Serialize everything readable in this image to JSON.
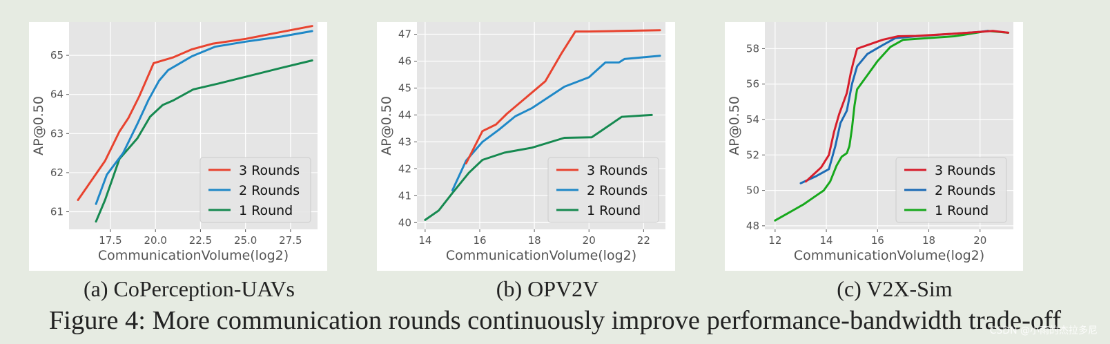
{
  "chart_data": [
    {
      "type": "line",
      "caption": "(a) CoPerception-UAVs",
      "xlabel": "CommunicationVolume(log2)",
      "ylabel": "AP@0.50",
      "xlim": [
        15.2,
        29.0
      ],
      "ylim": [
        60.55,
        65.85
      ],
      "xticks": [
        17.5,
        20.0,
        22.5,
        25.0,
        27.5
      ],
      "xtick_labels": [
        "17.5",
        "20.0",
        "22.5",
        "25.0",
        "27.5"
      ],
      "yticks": [
        61,
        62,
        63,
        64,
        65
      ],
      "ytick_labels": [
        "61",
        "62",
        "63",
        "64",
        "65"
      ],
      "grid": true,
      "legend_position": "lower-right",
      "series": [
        {
          "name": "3 Rounds",
          "color": "#e8432f",
          "x": [
            15.7,
            17.2,
            18.0,
            18.5,
            19.1,
            19.9,
            21.0,
            22.0,
            23.2,
            25.0,
            27.0,
            28.7
          ],
          "y": [
            61.3,
            62.3,
            63.05,
            63.4,
            63.95,
            64.8,
            64.95,
            65.15,
            65.3,
            65.42,
            65.6,
            65.75
          ]
        },
        {
          "name": "2 Rounds",
          "color": "#1f88c7",
          "x": [
            16.7,
            17.3,
            18.2,
            19.0,
            19.6,
            20.2,
            20.7,
            22.0,
            23.3,
            25.0,
            27.0,
            28.7
          ],
          "y": [
            61.2,
            61.95,
            62.5,
            63.25,
            63.85,
            64.35,
            64.62,
            64.97,
            65.22,
            65.35,
            65.48,
            65.62
          ]
        },
        {
          "name": "1 Round",
          "color": "#168950",
          "x": [
            16.7,
            17.2,
            18.0,
            19.0,
            19.7,
            20.4,
            21.0,
            22.1,
            23.5,
            25.0,
            27.0,
            28.7
          ],
          "y": [
            60.75,
            61.3,
            62.35,
            62.88,
            63.43,
            63.73,
            63.85,
            64.13,
            64.28,
            64.45,
            64.68,
            64.87
          ]
        }
      ]
    },
    {
      "type": "line",
      "caption": "(b) OPV2V",
      "xlabel": "CommunicationVolume(log2)",
      "ylabel": "AP@0.50",
      "xlim": [
        13.7,
        22.8
      ],
      "ylim": [
        39.75,
        47.45
      ],
      "xticks": [
        14,
        16,
        18,
        20,
        22
      ],
      "xtick_labels": [
        "14",
        "16",
        "18",
        "20",
        "22"
      ],
      "yticks": [
        40,
        41,
        42,
        43,
        44,
        45,
        46,
        47
      ],
      "ytick_labels": [
        "40",
        "41",
        "42",
        "43",
        "44",
        "45",
        "46",
        "47"
      ],
      "grid": true,
      "legend_position": "lower-right",
      "series": [
        {
          "name": "3 Rounds",
          "color": "#e8432f",
          "x": [
            15.5,
            16.1,
            16.6,
            17.0,
            17.7,
            18.4,
            19.0,
            19.5,
            20.0,
            21.0,
            22.6
          ],
          "y": [
            42.2,
            43.4,
            43.65,
            44.05,
            44.65,
            45.25,
            46.3,
            47.1,
            47.1,
            47.12,
            47.15
          ]
        },
        {
          "name": "2 Rounds",
          "color": "#1f88c7",
          "x": [
            15.0,
            15.5,
            16.1,
            16.7,
            17.3,
            17.9,
            18.5,
            19.1,
            20.0,
            20.6,
            21.1,
            21.3,
            22.6
          ],
          "y": [
            41.2,
            42.3,
            43.0,
            43.45,
            43.95,
            44.25,
            44.65,
            45.05,
            45.4,
            45.95,
            45.95,
            46.08,
            46.2
          ]
        },
        {
          "name": "1 Round",
          "color": "#168950",
          "x": [
            14.0,
            14.5,
            15.0,
            15.6,
            16.1,
            16.9,
            17.9,
            19.1,
            20.1,
            21.2,
            22.3
          ],
          "y": [
            40.1,
            40.45,
            41.1,
            41.85,
            42.33,
            42.6,
            42.78,
            43.15,
            43.17,
            43.93,
            44.0
          ]
        }
      ]
    },
    {
      "type": "line",
      "caption": "(c) V2X-Sim",
      "xlabel": "CommunicationVolume(log2)",
      "ylabel": "AP@0.50",
      "xlim": [
        11.6,
        21.3
      ],
      "ylim": [
        47.8,
        59.5
      ],
      "xticks": [
        12,
        14,
        16,
        18,
        20
      ],
      "xtick_labels": [
        "12",
        "14",
        "16",
        "18",
        "20"
      ],
      "yticks": [
        48,
        50,
        52,
        54,
        56,
        58
      ],
      "ytick_labels": [
        "48",
        "50",
        "52",
        "54",
        "56",
        "58"
      ],
      "grid": true,
      "legend_position": "lower-right",
      "series": [
        {
          "name": "3 Rounds",
          "color": "#d71d2b",
          "x": [
            13.2,
            13.8,
            14.1,
            14.3,
            14.5,
            14.8,
            14.95,
            15.05,
            15.2,
            15.6,
            16.2,
            16.8,
            17.5,
            19.0,
            20.0,
            20.5,
            21.1
          ],
          "y": [
            50.5,
            51.3,
            52.0,
            53.3,
            54.3,
            55.5,
            56.6,
            57.2,
            58.0,
            58.2,
            58.5,
            58.7,
            58.72,
            58.85,
            58.95,
            59.0,
            58.9
          ]
        },
        {
          "name": "2 Rounds",
          "color": "#1c6bb5",
          "x": [
            13.0,
            13.6,
            14.1,
            14.35,
            14.55,
            14.8,
            15.0,
            15.2,
            15.6,
            16.2,
            16.7,
            17.5,
            19.0,
            20.0,
            20.3
          ],
          "y": [
            50.4,
            50.8,
            51.2,
            52.5,
            53.8,
            54.5,
            56.0,
            57.0,
            57.7,
            58.2,
            58.6,
            58.7,
            58.85,
            58.95,
            59.0
          ]
        },
        {
          "name": "1 Round",
          "color": "#17a81c",
          "x": [
            12.0,
            13.1,
            13.6,
            13.9,
            14.15,
            14.4,
            14.6,
            14.7,
            14.8,
            14.9,
            15.0,
            15.1,
            15.2,
            15.6,
            16.0,
            16.5,
            17.0,
            19.0,
            20.3,
            21.1
          ],
          "y": [
            48.3,
            49.2,
            49.7,
            50.0,
            50.5,
            51.4,
            51.9,
            52.0,
            52.1,
            52.5,
            53.5,
            54.8,
            55.7,
            56.5,
            57.3,
            58.1,
            58.5,
            58.7,
            59.0,
            58.9
          ]
        }
      ]
    }
  ],
  "figure_caption": "Figure 4: More communication rounds continuously improve performance-bandwidth trade-off",
  "watermark": "CSDN @小雨的杰拉多尼"
}
